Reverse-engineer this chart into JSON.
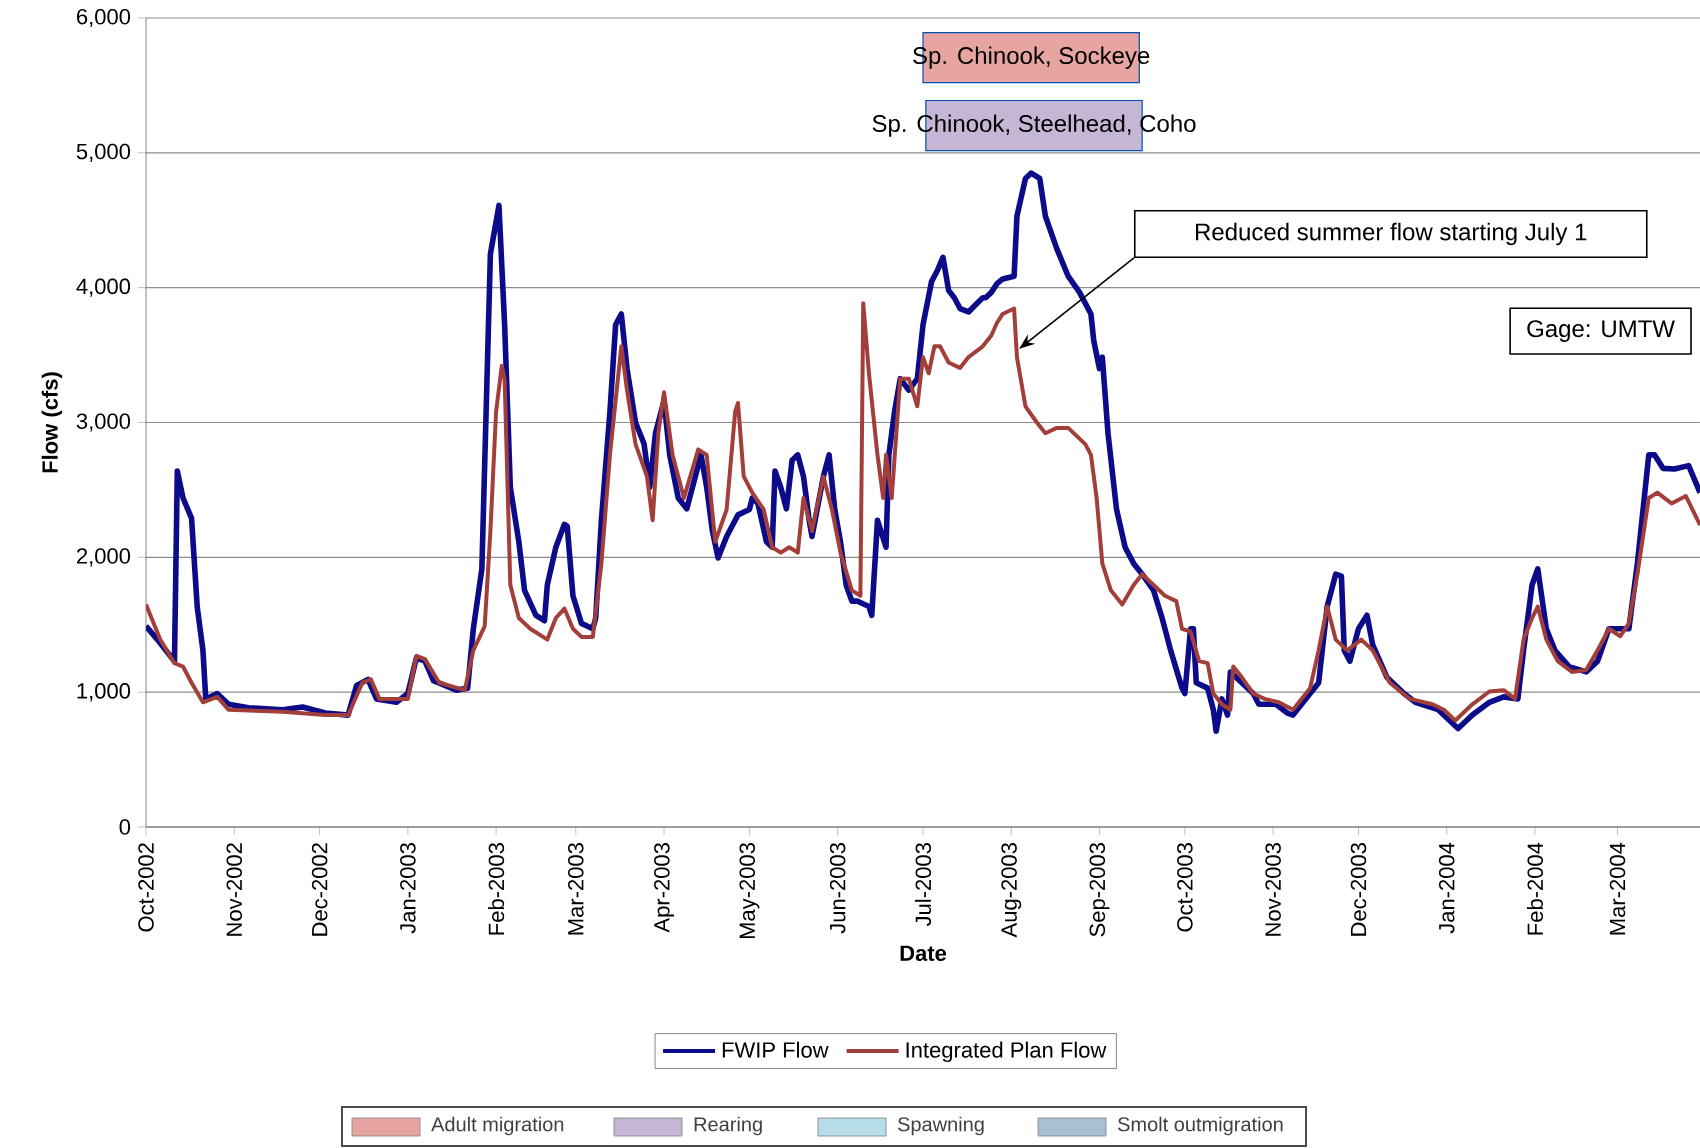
{
  "chart_data": {
    "type": "line",
    "xlabel": "Date",
    "ylabel": "Flow (cfs)",
    "xlim": [
      "2002-10-01",
      "2004-03-30"
    ],
    "xticks": [
      {
        "value": "2002-10-01",
        "label": "Oct-2002"
      },
      {
        "value": "2002-11-01",
        "label": "Nov-2002"
      },
      {
        "value": "2002-12-01",
        "label": "Dec-2002"
      },
      {
        "value": "2003-01-01",
        "label": "Jan-2003"
      },
      {
        "value": "2003-02-01",
        "label": "Feb-2003"
      },
      {
        "value": "2003-03-01",
        "label": "Mar-2003"
      },
      {
        "value": "2003-04-01",
        "label": "Apr-2003"
      },
      {
        "value": "2003-05-01",
        "label": "May-2003"
      },
      {
        "value": "2003-06-01",
        "label": "Jun-2003"
      },
      {
        "value": "2003-07-01",
        "label": "Jul-2003"
      },
      {
        "value": "2003-08-01",
        "label": "Aug-2003"
      },
      {
        "value": "2003-09-01",
        "label": "Sep-2003"
      },
      {
        "value": "2003-10-01",
        "label": "Oct-2003"
      },
      {
        "value": "2003-11-01",
        "label": "Nov-2003"
      },
      {
        "value": "2003-12-01",
        "label": "Dec-2003"
      },
      {
        "value": "2004-01-01",
        "label": "Jan-2004"
      },
      {
        "value": "2004-02-01",
        "label": "Feb-2004"
      },
      {
        "value": "2004-03-01",
        "label": "Mar-2004"
      }
    ],
    "ylim": [
      0,
      6000
    ],
    "yticks": [
      0,
      {
        "value": 1000,
        "label": "1,000"
      },
      {
        "value": 2000,
        "label": "2,000"
      },
      {
        "value": 3000,
        "label": "3,000"
      },
      {
        "value": 4000,
        "label": "4,000"
      },
      {
        "value": 5000,
        "label": "5,000"
      },
      {
        "value": 6000,
        "label": "6,000"
      }
    ],
    "grid": "y",
    "legend": "bottom",
    "series": [
      {
        "name": "FWIP Flow",
        "color": "#0c0c8a",
        "x": [
          "2002-10-01",
          "2002-10-05",
          "2002-10-11",
          "2002-10-12",
          "2002-10-14",
          "2002-10-17",
          "2002-10-19",
          "2002-10-21",
          "2002-10-22",
          "2002-10-26",
          "2002-10-30",
          "2002-11-06",
          "2002-11-18",
          "2002-11-25",
          "2002-12-03",
          "2002-12-11",
          "2002-12-14",
          "2002-12-18",
          "2002-12-21",
          "2002-12-28",
          "2003-01-01",
          "2003-01-04",
          "2003-01-07",
          "2003-01-10",
          "2003-01-18",
          "2003-01-22",
          "2003-01-24",
          "2003-01-27",
          "2003-01-30",
          "2003-02-02",
          "2003-02-04",
          "2003-02-06",
          "2003-02-09",
          "2003-02-11",
          "2003-02-15",
          "2003-02-18",
          "2003-02-19",
          "2003-02-22",
          "2003-02-25",
          "2003-02-26",
          "2003-02-28",
          "2003-03-03",
          "2003-03-07",
          "2003-03-08",
          "2003-03-10",
          "2003-03-13",
          "2003-03-15",
          "2003-03-17",
          "2003-03-19",
          "2003-03-22",
          "2003-03-25",
          "2003-03-27",
          "2003-03-29",
          "2003-04-01",
          "2003-04-03",
          "2003-04-06",
          "2003-04-09",
          "2003-04-12",
          "2003-04-14",
          "2003-04-16",
          "2003-04-18",
          "2003-04-20",
          "2003-04-23",
          "2003-04-27",
          "2003-05-01",
          "2003-05-02",
          "2003-05-04",
          "2003-05-07",
          "2003-05-09",
          "2003-05-10",
          "2003-05-12",
          "2003-05-14",
          "2003-05-16",
          "2003-05-18",
          "2003-05-20",
          "2003-05-22",
          "2003-05-23",
          "2003-05-27",
          "2003-05-29",
          "2003-05-31",
          "2003-06-02",
          "2003-06-04",
          "2003-06-06",
          "2003-06-08",
          "2003-06-12",
          "2003-06-13",
          "2003-06-15",
          "2003-06-18",
          "2003-06-19",
          "2003-06-21",
          "2003-06-23",
          "2003-06-26",
          "2003-06-29",
          "2003-07-01",
          "2003-07-04",
          "2003-07-06",
          "2003-07-08",
          "2003-07-10",
          "2003-07-12",
          "2003-07-14",
          "2003-07-17",
          "2003-07-20",
          "2003-07-22",
          "2003-07-23",
          "2003-07-25",
          "2003-07-27",
          "2003-07-29",
          "2003-08-02",
          "2003-08-03",
          "2003-08-06",
          "2003-08-08",
          "2003-08-11",
          "2003-08-13",
          "2003-08-17",
          "2003-08-21",
          "2003-08-25",
          "2003-08-29",
          "2003-08-30",
          "2003-09-01",
          "2003-09-02",
          "2003-09-04",
          "2003-09-07",
          "2003-09-10",
          "2003-09-13",
          "2003-09-16",
          "2003-09-20",
          "2003-09-23",
          "2003-09-26",
          "2003-09-30",
          "2003-10-01",
          "2003-10-03",
          "2003-10-04",
          "2003-10-05",
          "2003-10-09",
          "2003-10-11",
          "2003-10-12",
          "2003-10-14",
          "2003-10-16",
          "2003-10-17",
          "2003-10-21",
          "2003-10-25",
          "2003-10-27",
          "2003-11-02",
          "2003-11-06",
          "2003-11-08",
          "2003-11-14",
          "2003-11-17",
          "2003-11-20",
          "2003-11-23",
          "2003-11-25",
          "2003-11-26",
          "2003-11-28",
          "2003-12-01",
          "2003-12-04",
          "2003-12-06",
          "2003-12-11",
          "2003-12-17",
          "2003-12-21",
          "2003-12-29",
          "2004-01-02",
          "2004-01-05",
          "2004-01-10",
          "2004-01-16",
          "2004-01-21",
          "2004-01-26",
          "2004-01-28",
          "2004-01-31",
          "2004-02-02",
          "2004-02-05",
          "2004-02-08",
          "2004-02-13",
          "2004-02-19",
          "2004-02-23",
          "2004-02-27",
          "2004-03-02",
          "2004-03-05",
          "2004-03-08",
          "2004-03-12",
          "2004-03-14",
          "2004-03-17",
          "2004-03-21",
          "2004-03-26",
          "2004-03-30"
        ],
        "values": [
          1490,
          1390,
          1230,
          2640,
          2440,
          2290,
          1630,
          1310,
          950,
          990,
          910,
          885,
          870,
          890,
          845,
          830,
          1050,
          1095,
          950,
          925,
          990,
          1255,
          1230,
          1085,
          1015,
          1030,
          1470,
          1915,
          4250,
          4610,
          3725,
          2520,
          2115,
          1755,
          1570,
          1530,
          1795,
          2075,
          2245,
          2230,
          1715,
          1510,
          1470,
          1550,
          2275,
          3080,
          3725,
          3805,
          3400,
          3000,
          2840,
          2520,
          2920,
          3160,
          2760,
          2440,
          2360,
          2600,
          2760,
          2520,
          2195,
          1995,
          2155,
          2315,
          2355,
          2440,
          2400,
          2115,
          2075,
          2640,
          2520,
          2360,
          2720,
          2760,
          2600,
          2275,
          2155,
          2600,
          2760,
          2355,
          2115,
          1795,
          1675,
          1675,
          1635,
          1570,
          2275,
          2075,
          2760,
          3080,
          3325,
          3240,
          3325,
          3725,
          4045,
          4125,
          4225,
          3980,
          3925,
          3845,
          3820,
          3885,
          3925,
          3925,
          3965,
          4030,
          4065,
          4085,
          4530,
          4810,
          4850,
          4810,
          4530,
          4290,
          4085,
          3965,
          3805,
          3605,
          3400,
          3485,
          2920,
          2355,
          2075,
          1955,
          1875,
          1755,
          1550,
          1310,
          1030,
          990,
          1470,
          1470,
          1070,
          1030,
          870,
          710,
          950,
          830,
          1150,
          1070,
          990,
          910,
          910,
          845,
          830,
          990,
          1070,
          1635,
          1875,
          1860,
          1310,
          1230,
          1470,
          1570,
          1350,
          1110,
          990,
          925,
          870,
          790,
          730,
          830,
          925,
          965,
          950,
          1310,
          1795,
          1915,
          1470,
          1310,
          1190,
          1150,
          1230,
          1470,
          1470,
          1470,
          1955,
          2760,
          2760,
          2660,
          2655,
          2680,
          2480
        ]
      },
      {
        "name": "Integrated Plan Flow",
        "color": "#a33f3a",
        "x": [
          "2002-10-01",
          "2002-10-06",
          "2002-10-11",
          "2002-10-14",
          "2002-10-17",
          "2002-10-21",
          "2002-10-26",
          "2002-10-30",
          "2002-11-18",
          "2002-12-03",
          "2002-12-11",
          "2002-12-16",
          "2002-12-19",
          "2002-12-22",
          "2003-01-01",
          "2003-01-04",
          "2003-01-07",
          "2003-01-12",
          "2003-01-21",
          "2003-01-24",
          "2003-01-28",
          "2003-01-30",
          "2003-02-01",
          "2003-02-03",
          "2003-02-04",
          "2003-02-06",
          "2003-02-09",
          "2003-02-13",
          "2003-02-19",
          "2003-02-22",
          "2003-02-25",
          "2003-02-28",
          "2003-03-03",
          "2003-03-07",
          "2003-03-10",
          "2003-03-13",
          "2003-03-17",
          "2003-03-19",
          "2003-03-22",
          "2003-03-26",
          "2003-03-28",
          "2003-03-30",
          "2003-04-01",
          "2003-04-04",
          "2003-04-08",
          "2003-04-13",
          "2003-04-16",
          "2003-04-19",
          "2003-04-23",
          "2003-04-26",
          "2003-04-27",
          "2003-04-29",
          "2003-05-02",
          "2003-05-06",
          "2003-05-09",
          "2003-05-12",
          "2003-05-15",
          "2003-05-18",
          "2003-05-20",
          "2003-05-23",
          "2003-05-27",
          "2003-05-30",
          "2003-06-02",
          "2003-06-06",
          "2003-06-09",
          "2003-06-10",
          "2003-06-12",
          "2003-06-15",
          "2003-06-17",
          "2003-06-18",
          "2003-06-20",
          "2003-06-23",
          "2003-06-26",
          "2003-06-29",
          "2003-07-01",
          "2003-07-03",
          "2003-07-05",
          "2003-07-07",
          "2003-07-10",
          "2003-07-14",
          "2003-07-17",
          "2003-07-22",
          "2003-07-25",
          "2003-07-27",
          "2003-07-29",
          "2003-08-02",
          "2003-08-03",
          "2003-08-06",
          "2003-08-10",
          "2003-08-13",
          "2003-08-17",
          "2003-08-21",
          "2003-08-25",
          "2003-08-27",
          "2003-08-29",
          "2003-08-31",
          "2003-09-02",
          "2003-09-05",
          "2003-09-09",
          "2003-09-13",
          "2003-09-16",
          "2003-09-20",
          "2003-09-24",
          "2003-09-28",
          "2003-09-30",
          "2003-10-03",
          "2003-10-06",
          "2003-10-09",
          "2003-10-11",
          "2003-10-14",
          "2003-10-17",
          "2003-10-18",
          "2003-10-21",
          "2003-10-25",
          "2003-10-29",
          "2003-11-03",
          "2003-11-08",
          "2003-11-14",
          "2003-11-17",
          "2003-11-20",
          "2003-11-23",
          "2003-11-27",
          "2003-12-02",
          "2003-12-06",
          "2003-12-12",
          "2003-12-19",
          "2003-12-27",
          "2003-12-31",
          "2004-01-04",
          "2004-01-10",
          "2004-01-16",
          "2004-01-21",
          "2004-01-25",
          "2004-01-28",
          "2004-01-31",
          "2004-02-02",
          "2004-02-05",
          "2004-02-09",
          "2004-02-14",
          "2004-02-19",
          "2004-02-23",
          "2004-02-27",
          "2004-03-02",
          "2004-03-05",
          "2004-03-08",
          "2004-03-12",
          "2004-03-15",
          "2004-03-20",
          "2004-03-25",
          "2004-03-30"
        ],
        "values": [
          1650,
          1390,
          1215,
          1190,
          1070,
          925,
          965,
          870,
          855,
          830,
          830,
          1070,
          1095,
          950,
          950,
          1270,
          1245,
          1070,
          1015,
          1310,
          1490,
          2195,
          3080,
          3420,
          3320,
          1795,
          1550,
          1470,
          1390,
          1550,
          1620,
          1470,
          1410,
          1410,
          1955,
          2760,
          3565,
          3240,
          2840,
          2600,
          2275,
          2920,
          3225,
          2760,
          2440,
          2800,
          2760,
          2115,
          2355,
          3080,
          3145,
          2600,
          2480,
          2355,
          2075,
          2035,
          2075,
          2035,
          2440,
          2195,
          2600,
          2355,
          2035,
          1755,
          1715,
          3885,
          3365,
          2760,
          2440,
          2760,
          2440,
          3325,
          3325,
          3120,
          3485,
          3365,
          3565,
          3565,
          3445,
          3405,
          3485,
          3565,
          3645,
          3740,
          3805,
          3845,
          3485,
          3120,
          3000,
          2920,
          2960,
          2960,
          2880,
          2840,
          2760,
          2440,
          1955,
          1755,
          1650,
          1795,
          1875,
          1795,
          1715,
          1675,
          1470,
          1450,
          1230,
          1215,
          990,
          910,
          870,
          1190,
          1110,
          990,
          950,
          925,
          870,
          1030,
          1310,
          1635,
          1390,
          1310,
          1390,
          1310,
          1070,
          950,
          910,
          870,
          790,
          910,
          1005,
          1015,
          950,
          1390,
          1550,
          1635,
          1390,
          1230,
          1150,
          1165,
          1310,
          1470,
          1415,
          1510,
          1875,
          2440,
          2480,
          2400,
          2455,
          2240
        ]
      }
    ],
    "bands": [
      {
        "axis": "x",
        "from": "2003-07-01",
        "to": "2003-09-15",
        "label": "Sp. Chinook, Sockeye",
        "color": "#e6a5a1"
      },
      {
        "axis": "x",
        "from": "2003-07-02",
        "to": "2003-09-16",
        "label": "Sp. Chinook, Steelhead, Coho",
        "color": "#c5b6d6"
      }
    ],
    "annotations": [
      "Reduced summer flow starting July 1",
      "Gage: UMTW",
      "Adult migration",
      "Rearing",
      "Spawning",
      "Smolt outmigration"
    ]
  }
}
